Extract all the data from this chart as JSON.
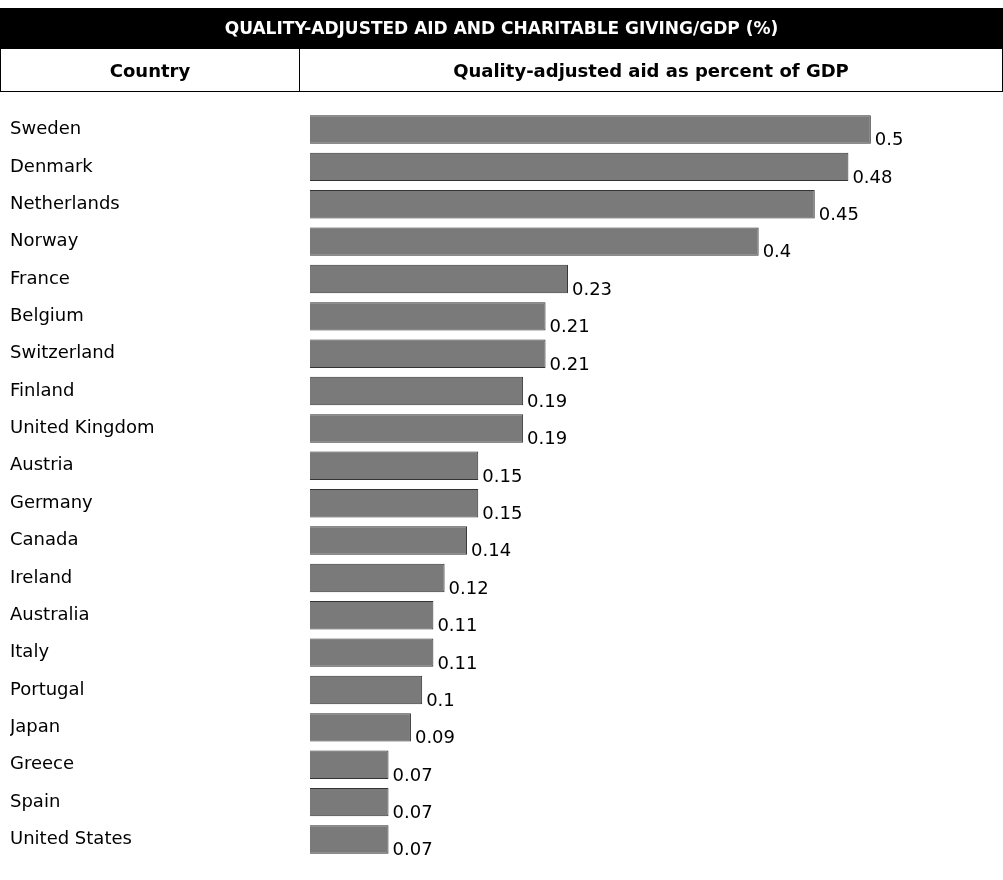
{
  "chart_data": {
    "type": "bar",
    "orientation": "horizontal",
    "title": "QUALITY-ADJUSTED AID AND CHARITABLE GIVING/GDP (%)",
    "ylabel": "Country",
    "xlabel": "Quality-adjusted aid as percent of GDP",
    "categories": [
      "Sweden",
      "Denmark",
      "Netherlands",
      "Norway",
      "France",
      "Belgium",
      "Switzerland",
      "Finland",
      "United Kingdom",
      "Austria",
      "Germany",
      "Canada",
      "Ireland",
      "Australia",
      "Italy",
      "Portugal",
      "Japan",
      "Greece",
      "Spain",
      "United States"
    ],
    "values": [
      0.5,
      0.48,
      0.45,
      0.4,
      0.23,
      0.21,
      0.21,
      0.19,
      0.19,
      0.15,
      0.15,
      0.14,
      0.12,
      0.11,
      0.11,
      0.1,
      0.09,
      0.07,
      0.07,
      0.07
    ],
    "color": "#7a7a7a",
    "data_labels": true,
    "legend": false
  }
}
